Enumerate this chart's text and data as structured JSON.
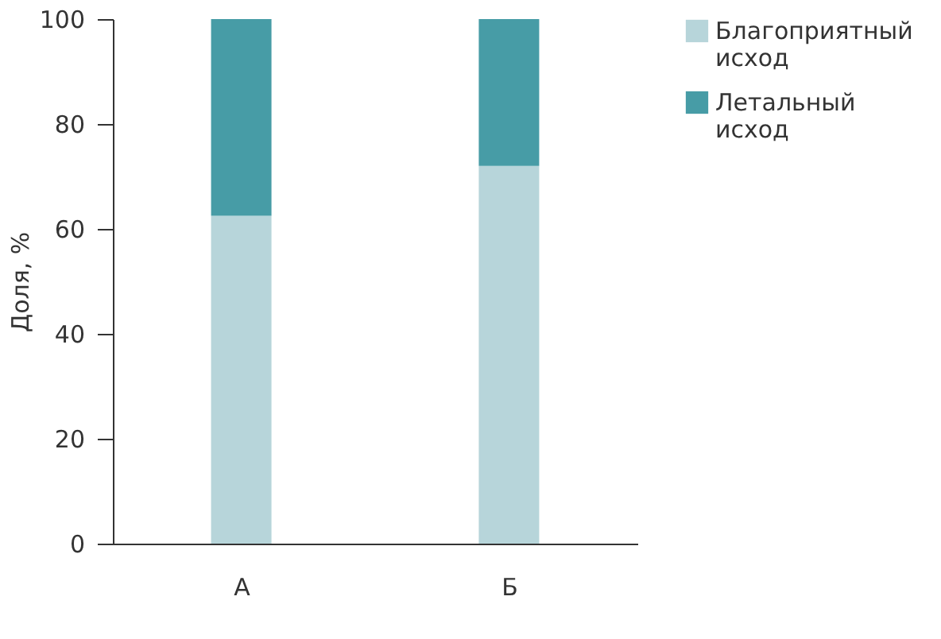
{
  "chart_data": {
    "type": "bar",
    "stacked": true,
    "ylabel": "Доля, %",
    "categories": [
      "А",
      "Б"
    ],
    "series": [
      {
        "name": "Благоприятный исход",
        "color": "#b7d5da",
        "values": [
          62.5,
          72
        ]
      },
      {
        "name": "Летальный исход",
        "color": "#479ca6",
        "values": [
          37.5,
          28
        ]
      }
    ],
    "ylim": [
      0,
      100
    ],
    "yticks": [
      0,
      20,
      40,
      60,
      80,
      100
    ],
    "grid": false,
    "legend": "top right"
  }
}
